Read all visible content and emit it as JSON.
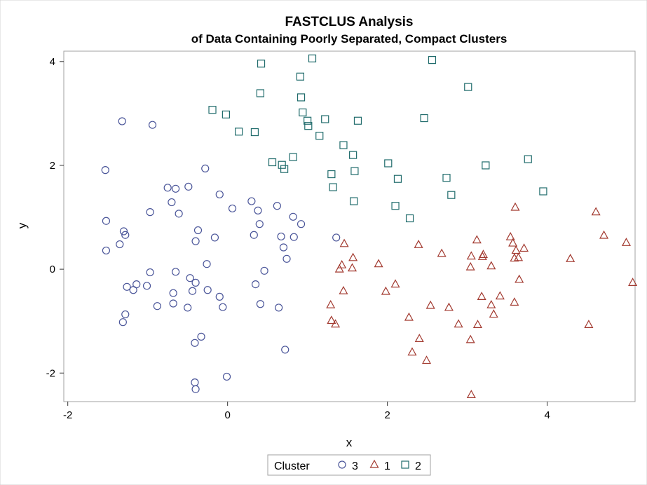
{
  "chart_data": {
    "type": "scatter",
    "title": "FASTCLUS Analysis",
    "subtitle": "of Data Containing Poorly Separated, Compact Clusters",
    "xlabel": "x",
    "ylabel": "y",
    "xlim": [
      -2.05,
      5.1
    ],
    "ylim": [
      -2.55,
      4.2
    ],
    "xticks": [
      -2,
      0,
      2,
      4
    ],
    "yticks": [
      -2,
      0,
      2,
      4
    ],
    "grid": false,
    "legend": {
      "title": "Cluster",
      "placement": "bottom-center",
      "entries": [
        "3",
        "1",
        "2"
      ]
    },
    "series": [
      {
        "name": "3",
        "marker": "circle",
        "color": "#4a5599",
        "points": [
          [
            -1.32,
            2.85
          ],
          [
            -0.94,
            2.78
          ],
          [
            -1.53,
            1.91
          ],
          [
            -0.28,
            1.94
          ],
          [
            -0.75,
            1.57
          ],
          [
            -0.65,
            1.55
          ],
          [
            -0.49,
            1.59
          ],
          [
            -0.1,
            1.44
          ],
          [
            -0.7,
            1.29
          ],
          [
            -0.97,
            1.1
          ],
          [
            -0.61,
            1.07
          ],
          [
            0.06,
            1.17
          ],
          [
            0.3,
            1.31
          ],
          [
            0.38,
            1.13
          ],
          [
            0.62,
            1.22
          ],
          [
            0.82,
            1.01
          ],
          [
            -1.52,
            0.93
          ],
          [
            0.4,
            0.87
          ],
          [
            0.92,
            0.87
          ],
          [
            -1.3,
            0.73
          ],
          [
            -1.28,
            0.66
          ],
          [
            -0.37,
            0.75
          ],
          [
            0.33,
            0.66
          ],
          [
            0.67,
            0.63
          ],
          [
            0.83,
            0.62
          ],
          [
            -0.16,
            0.61
          ],
          [
            -0.4,
            0.54
          ],
          [
            1.36,
            0.61
          ],
          [
            -1.35,
            0.48
          ],
          [
            -1.52,
            0.36
          ],
          [
            0.7,
            0.42
          ],
          [
            0.74,
            0.2
          ],
          [
            -0.26,
            0.1
          ],
          [
            -0.97,
            -0.06
          ],
          [
            -0.65,
            -0.05
          ],
          [
            0.46,
            -0.03
          ],
          [
            -0.47,
            -0.17
          ],
          [
            -1.14,
            -0.29
          ],
          [
            -1.26,
            -0.34
          ],
          [
            -1.18,
            -0.4
          ],
          [
            -1.01,
            -0.32
          ],
          [
            -0.4,
            -0.26
          ],
          [
            0.35,
            -0.29
          ],
          [
            -0.44,
            -0.42
          ],
          [
            -0.25,
            -0.4
          ],
          [
            -0.68,
            -0.46
          ],
          [
            -0.1,
            -0.53
          ],
          [
            -0.68,
            -0.66
          ],
          [
            0.41,
            -0.67
          ],
          [
            -0.88,
            -0.71
          ],
          [
            -0.5,
            -0.74
          ],
          [
            -0.06,
            -0.73
          ],
          [
            0.64,
            -0.74
          ],
          [
            -1.28,
            -0.87
          ],
          [
            -1.31,
            -1.02
          ],
          [
            -0.33,
            -1.3
          ],
          [
            -0.41,
            -1.42
          ],
          [
            0.72,
            -1.55
          ],
          [
            -0.01,
            -2.07
          ],
          [
            -0.41,
            -2.18
          ],
          [
            -0.4,
            -2.31
          ]
        ]
      },
      {
        "name": "1",
        "marker": "triangle",
        "color": "#a2392f",
        "points": [
          [
            3.6,
            1.19
          ],
          [
            4.61,
            1.1
          ],
          [
            4.71,
            0.65
          ],
          [
            3.12,
            0.56
          ],
          [
            3.54,
            0.62
          ],
          [
            4.99,
            0.51
          ],
          [
            1.46,
            0.49
          ],
          [
            2.39,
            0.47
          ],
          [
            3.61,
            0.36
          ],
          [
            3.71,
            0.4
          ],
          [
            3.57,
            0.5
          ],
          [
            2.68,
            0.3
          ],
          [
            3.05,
            0.25
          ],
          [
            3.19,
            0.24
          ],
          [
            3.2,
            0.28
          ],
          [
            3.59,
            0.21
          ],
          [
            3.64,
            0.22
          ],
          [
            1.57,
            0.22
          ],
          [
            3.04,
            0.04
          ],
          [
            3.3,
            0.06
          ],
          [
            4.29,
            0.2
          ],
          [
            1.43,
            0.08
          ],
          [
            1.4,
            0.0
          ],
          [
            1.56,
            0.02
          ],
          [
            1.89,
            0.1
          ],
          [
            3.65,
            -0.2
          ],
          [
            5.07,
            -0.26
          ],
          [
            1.45,
            -0.42
          ],
          [
            2.1,
            -0.29
          ],
          [
            1.98,
            -0.43
          ],
          [
            3.41,
            -0.52
          ],
          [
            3.18,
            -0.53
          ],
          [
            3.59,
            -0.64
          ],
          [
            1.29,
            -0.69
          ],
          [
            2.54,
            -0.7
          ],
          [
            2.77,
            -0.74
          ],
          [
            3.3,
            -0.69
          ],
          [
            3.33,
            -0.87
          ],
          [
            2.27,
            -0.93
          ],
          [
            1.3,
            -0.99
          ],
          [
            1.35,
            -1.06
          ],
          [
            2.89,
            -1.06
          ],
          [
            3.13,
            -1.07
          ],
          [
            4.52,
            -1.07
          ],
          [
            2.4,
            -1.34
          ],
          [
            3.04,
            -1.36
          ],
          [
            2.31,
            -1.6
          ],
          [
            2.49,
            -1.76
          ],
          [
            3.05,
            -2.42
          ]
        ]
      },
      {
        "name": "2",
        "marker": "square",
        "color": "#1f6b6b",
        "points": [
          [
            1.06,
            4.06
          ],
          [
            2.56,
            4.03
          ],
          [
            0.42,
            3.96
          ],
          [
            0.91,
            3.71
          ],
          [
            3.01,
            3.51
          ],
          [
            0.41,
            3.39
          ],
          [
            0.92,
            3.31
          ],
          [
            -0.19,
            3.07
          ],
          [
            -0.02,
            2.98
          ],
          [
            0.94,
            3.02
          ],
          [
            1.22,
            2.89
          ],
          [
            1.0,
            2.86
          ],
          [
            1.63,
            2.86
          ],
          [
            2.46,
            2.91
          ],
          [
            1.01,
            2.76
          ],
          [
            0.14,
            2.65
          ],
          [
            0.34,
            2.64
          ],
          [
            1.15,
            2.57
          ],
          [
            1.45,
            2.39
          ],
          [
            1.57,
            2.2
          ],
          [
            0.82,
            2.16
          ],
          [
            3.76,
            2.12
          ],
          [
            0.56,
            2.06
          ],
          [
            0.68,
            2.01
          ],
          [
            0.71,
            1.93
          ],
          [
            2.01,
            2.04
          ],
          [
            3.23,
            2.0
          ],
          [
            1.59,
            1.89
          ],
          [
            1.3,
            1.83
          ],
          [
            2.13,
            1.74
          ],
          [
            2.74,
            1.76
          ],
          [
            1.32,
            1.58
          ],
          [
            3.95,
            1.5
          ],
          [
            2.8,
            1.43
          ],
          [
            1.58,
            1.31
          ],
          [
            2.1,
            1.22
          ],
          [
            2.28,
            0.98
          ]
        ]
      }
    ]
  }
}
